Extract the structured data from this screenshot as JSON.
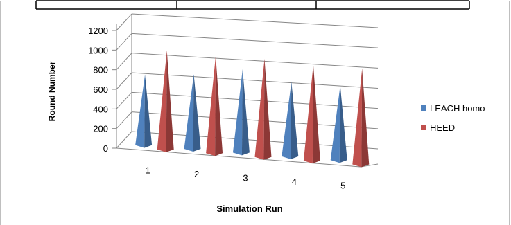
{
  "chart_data": {
    "type": "bar",
    "style": "3d-cone",
    "categories": [
      "1",
      "2",
      "3",
      "4",
      "5"
    ],
    "series": [
      {
        "name": "LEACH homo",
        "values": [
          720,
          760,
          850,
          760,
          760
        ],
        "color": "#4F81BD"
      },
      {
        "name": "HEED",
        "values": [
          1010,
          990,
          1000,
          980,
          980
        ],
        "color": "#C0504D"
      }
    ],
    "xlabel": "Simulation Run",
    "ylabel": "Round Number",
    "ylim": [
      0,
      1200
    ],
    "yticks": [
      "0",
      "200",
      "400",
      "600",
      "800",
      "1000",
      "1200"
    ],
    "grid": true,
    "legend_position": "right"
  }
}
